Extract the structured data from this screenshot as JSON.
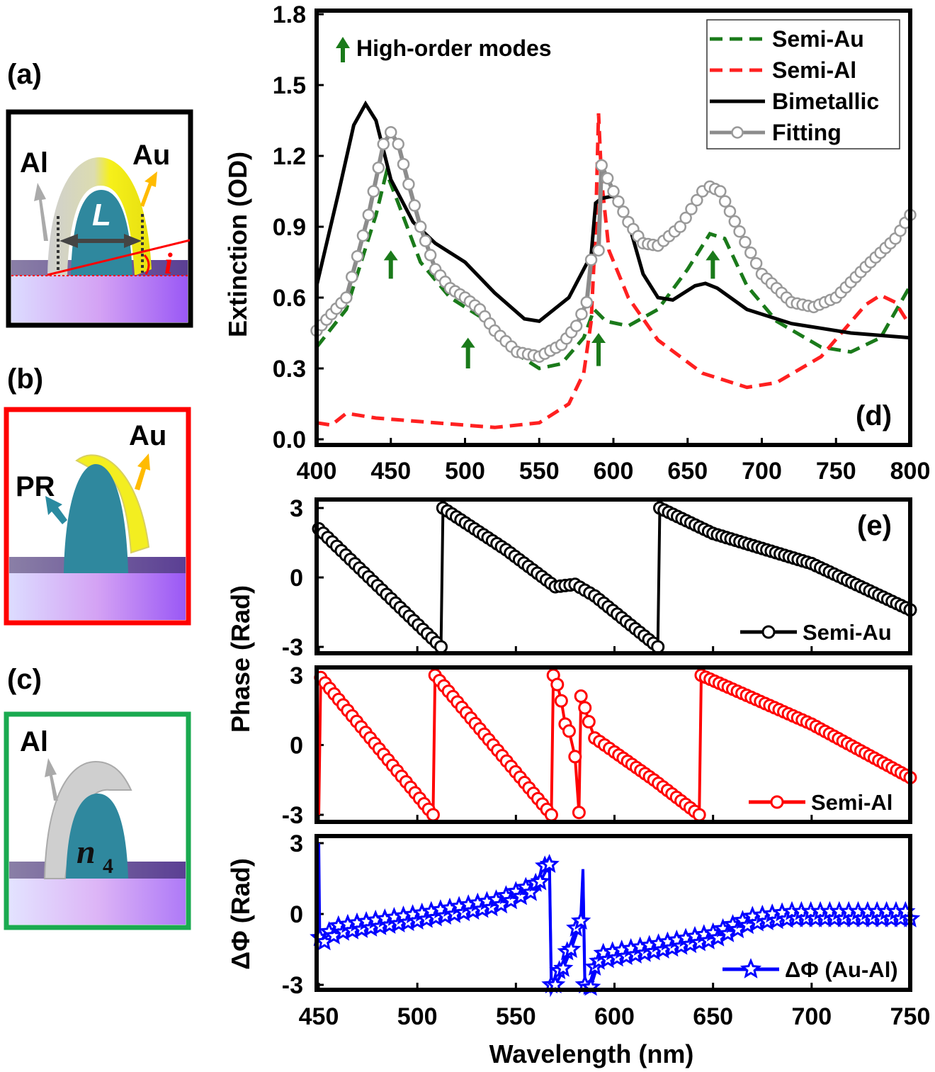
{
  "schematics": {
    "a": {
      "label": "(a)",
      "left_metal": "Al",
      "right_metal": "Au",
      "length_symbol": "L",
      "angle_symbol": "i",
      "border_color": "#000000"
    },
    "b": {
      "label": "(b)",
      "left_material": "PR",
      "right_metal": "Au",
      "border_color": "#ff0000"
    },
    "c": {
      "label": "(c)",
      "left_metal": "Al",
      "index_symbol": "n",
      "index_subscript": "4",
      "border_color": "#1aaa50"
    }
  },
  "chart_data": [
    {
      "panel": "(d)",
      "type": "line",
      "xlabel": "",
      "ylabel": "Extinction (OD)",
      "xlim": [
        400,
        800
      ],
      "ylim": [
        0,
        1.8
      ],
      "xticks": [
        "400",
        "450",
        "500",
        "550",
        "600",
        "650",
        "700",
        "750",
        "800"
      ],
      "yticks": [
        "0.0",
        "0.3",
        "0.6",
        "0.9",
        "1.2",
        "1.5",
        "1.8"
      ],
      "legend_position": "top-right",
      "annotation": "High-order modes",
      "annotation_arrows": [
        [
          450,
          0.68,
          0.8
        ],
        [
          502,
          0.3,
          0.43
        ],
        [
          590,
          0.31,
          0.45
        ],
        [
          667,
          0.68,
          0.8
        ]
      ],
      "series": [
        {
          "name": "Semi-Au",
          "color": "#1a7a1a",
          "style": "dashed",
          "points": [
            [
              400,
              0.39
            ],
            [
              420,
              0.55
            ],
            [
              440,
              0.95
            ],
            [
              447,
              1.13
            ],
            [
              455,
              1.0
            ],
            [
              470,
              0.75
            ],
            [
              490,
              0.6
            ],
            [
              510,
              0.52
            ],
            [
              530,
              0.38
            ],
            [
              550,
              0.3
            ],
            [
              565,
              0.32
            ],
            [
              580,
              0.43
            ],
            [
              587,
              0.55
            ],
            [
              595,
              0.5
            ],
            [
              610,
              0.48
            ],
            [
              630,
              0.55
            ],
            [
              650,
              0.72
            ],
            [
              665,
              0.87
            ],
            [
              675,
              0.85
            ],
            [
              690,
              0.65
            ],
            [
              710,
              0.5
            ],
            [
              740,
              0.39
            ],
            [
              760,
              0.37
            ],
            [
              780,
              0.43
            ],
            [
              800,
              0.65
            ]
          ]
        },
        {
          "name": "Semi-Al",
          "color": "#ff2020",
          "style": "dashed",
          "points": [
            [
              400,
              0.07
            ],
            [
              410,
              0.06
            ],
            [
              420,
              0.11
            ],
            [
              440,
              0.09
            ],
            [
              480,
              0.07
            ],
            [
              520,
              0.05
            ],
            [
              550,
              0.07
            ],
            [
              570,
              0.15
            ],
            [
              580,
              0.28
            ],
            [
              585,
              0.5
            ],
            [
              588,
              0.9
            ],
            [
              590,
              1.38
            ],
            [
              592,
              1.1
            ],
            [
              597,
              0.8
            ],
            [
              610,
              0.6
            ],
            [
              630,
              0.42
            ],
            [
              660,
              0.28
            ],
            [
              690,
              0.22
            ],
            [
              710,
              0.24
            ],
            [
              740,
              0.35
            ],
            [
              770,
              0.57
            ],
            [
              780,
              0.61
            ],
            [
              790,
              0.58
            ],
            [
              800,
              0.48
            ]
          ]
        },
        {
          "name": "Bimetallic",
          "color": "#000000",
          "style": "solid",
          "points": [
            [
              400,
              0.65
            ],
            [
              415,
              1.05
            ],
            [
              425,
              1.33
            ],
            [
              433,
              1.42
            ],
            [
              440,
              1.35
            ],
            [
              450,
              1.1
            ],
            [
              465,
              0.92
            ],
            [
              480,
              0.83
            ],
            [
              500,
              0.75
            ],
            [
              520,
              0.62
            ],
            [
              540,
              0.51
            ],
            [
              550,
              0.5
            ],
            [
              570,
              0.6
            ],
            [
              585,
              0.78
            ],
            [
              588,
              1.0
            ],
            [
              592,
              1.02
            ],
            [
              600,
              1.03
            ],
            [
              610,
              0.92
            ],
            [
              620,
              0.7
            ],
            [
              630,
              0.6
            ],
            [
              640,
              0.59
            ],
            [
              655,
              0.65
            ],
            [
              662,
              0.66
            ],
            [
              670,
              0.64
            ],
            [
              690,
              0.55
            ],
            [
              720,
              0.49
            ],
            [
              760,
              0.45
            ],
            [
              800,
              0.43
            ]
          ]
        },
        {
          "name": "Fitting",
          "color": "#8c8c8c",
          "style": "line+circle",
          "points": [
            [
              400,
              0.46
            ],
            [
              420,
              0.6
            ],
            [
              435,
              0.95
            ],
            [
              445,
              1.25
            ],
            [
              450,
              1.3
            ],
            [
              455,
              1.25
            ],
            [
              462,
              1.08
            ],
            [
              470,
              0.9
            ],
            [
              480,
              0.72
            ],
            [
              490,
              0.64
            ],
            [
              500,
              0.6
            ],
            [
              510,
              0.55
            ],
            [
              520,
              0.46
            ],
            [
              535,
              0.37
            ],
            [
              550,
              0.35
            ],
            [
              565,
              0.4
            ],
            [
              575,
              0.48
            ],
            [
              582,
              0.58
            ],
            [
              585,
              0.76
            ],
            [
              590,
              0.8
            ],
            [
              592,
              1.16
            ],
            [
              600,
              1.05
            ],
            [
              610,
              0.92
            ],
            [
              620,
              0.83
            ],
            [
              630,
              0.82
            ],
            [
              645,
              0.9
            ],
            [
              660,
              1.05
            ],
            [
              665,
              1.07
            ],
            [
              672,
              1.05
            ],
            [
              685,
              0.88
            ],
            [
              700,
              0.7
            ],
            [
              720,
              0.58
            ],
            [
              735,
              0.56
            ],
            [
              750,
              0.6
            ],
            [
              770,
              0.73
            ],
            [
              790,
              0.85
            ],
            [
              800,
              0.95
            ]
          ]
        }
      ]
    },
    {
      "panel": "(e)",
      "type": "line",
      "xlabel": "Wavelength (nm)",
      "ylabel": "Phase (Rad)",
      "xlim": [
        450,
        750
      ],
      "ylim": [
        -3,
        3
      ],
      "xticks": [
        "450",
        "500",
        "550",
        "600",
        "650",
        "700",
        "750"
      ],
      "yticks": [
        "-3",
        "0",
        "3"
      ],
      "legend_position": "bottom-right",
      "series": [
        {
          "name": "Semi-Au",
          "color": "#000000",
          "marker": "circle",
          "points": [
            [
              450,
              2.1
            ],
            [
              512,
              -3
            ],
            [
              513,
              3
            ],
            [
              545,
              1.2
            ],
            [
              570,
              -0.4
            ],
            [
              580,
              -0.3
            ],
            [
              590,
              -0.8
            ],
            [
              622,
              -3
            ],
            [
              623,
              3
            ],
            [
              650,
              1.9
            ],
            [
              700,
              0.6
            ],
            [
              750,
              -1.4
            ]
          ]
        },
        {
          "name": "Semi-Al",
          "color": "#ff0000",
          "marker": "circle",
          "points": [
            [
              450,
              -3
            ],
            [
              451,
              2.9
            ],
            [
              508,
              -3
            ],
            [
              509,
              3
            ],
            [
              568,
              -3
            ],
            [
              569,
              3
            ],
            [
              571,
              2.6
            ],
            [
              573,
              1.9
            ],
            [
              575,
              0.9
            ],
            [
              577,
              0.6
            ],
            [
              580,
              -0.5
            ],
            [
              582,
              -2.9
            ],
            [
              583,
              2.1
            ],
            [
              585,
              1.6
            ],
            [
              587,
              1.0
            ],
            [
              590,
              0.3
            ],
            [
              600,
              -0.3
            ],
            [
              620,
              -1.5
            ],
            [
              643,
              -3
            ],
            [
              644,
              3
            ],
            [
              660,
              2.4
            ],
            [
              700,
              0.9
            ],
            [
              750,
              -1.4
            ]
          ]
        }
      ]
    },
    {
      "panel": "(e) bottom",
      "type": "line",
      "xlabel": "Wavelength (nm)",
      "ylabel": "ΔΦ (Rad)",
      "xlim": [
        450,
        750
      ],
      "ylim": [
        -3,
        3
      ],
      "yticks": [
        "-3",
        "0",
        "3"
      ],
      "legend_position": "bottom-right",
      "series": [
        {
          "name": "ΔΦ (Au-Al)",
          "color": "#0000ff",
          "marker": "star",
          "points": [
            [
              450,
              3
            ],
            [
              450.5,
              -1
            ],
            [
              460,
              -0.5
            ],
            [
              500,
              0
            ],
            [
              540,
              0.6
            ],
            [
              560,
              1.3
            ],
            [
              567,
              2.4
            ],
            [
              568,
              -3
            ],
            [
              572,
              -2.4
            ],
            [
              578,
              -1.2
            ],
            [
              583,
              0
            ],
            [
              584,
              1.9
            ],
            [
              585,
              -3
            ],
            [
              588,
              -2.8
            ],
            [
              592,
              -1.7
            ],
            [
              620,
              -1.3
            ],
            [
              650,
              -0.8
            ],
            [
              670,
              -0.1
            ],
            [
              690,
              0.1
            ],
            [
              750,
              0.1
            ]
          ]
        }
      ]
    }
  ]
}
